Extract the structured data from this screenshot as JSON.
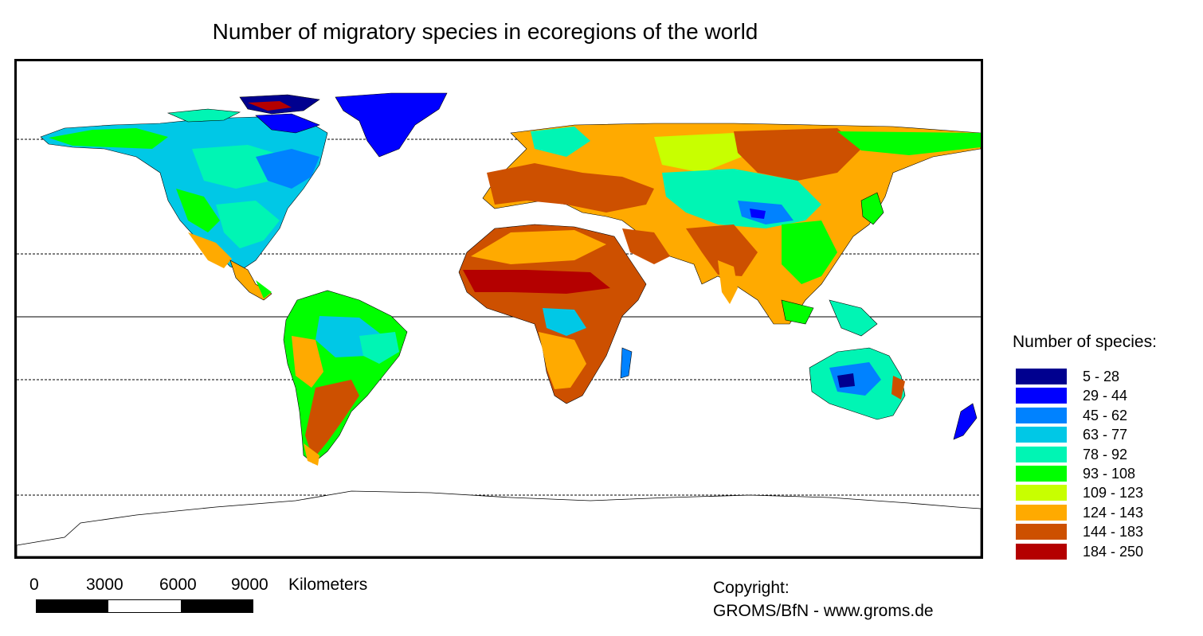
{
  "title": "Number of migratory species in ecoregions of the world",
  "legend": {
    "title": "Number of species:",
    "classes": [
      {
        "label": "5 - 28",
        "color": "#00008f"
      },
      {
        "label": "29 - 44",
        "color": "#0000ff"
      },
      {
        "label": "45 - 62",
        "color": "#0082ff"
      },
      {
        "label": "63 - 77",
        "color": "#00c8e6"
      },
      {
        "label": "78 - 92",
        "color": "#00f5b4"
      },
      {
        "label": "93 - 108",
        "color": "#00ff00"
      },
      {
        "label": "109 - 123",
        "color": "#c8ff00"
      },
      {
        "label": "124 - 143",
        "color": "#ffaa00"
      },
      {
        "label": "144 - 183",
        "color": "#cd5000"
      },
      {
        "label": "184 - 250",
        "color": "#b40000"
      }
    ]
  },
  "scale": {
    "ticks": [
      "0",
      "3000",
      "6000",
      "9000"
    ],
    "unit": "Kilometers",
    "segment_colors": [
      "#000000",
      "#ffffff",
      "#000000"
    ]
  },
  "copyright": {
    "line1": "Copyright:",
    "line2": "GROMS/BfN - www.groms.de"
  }
}
